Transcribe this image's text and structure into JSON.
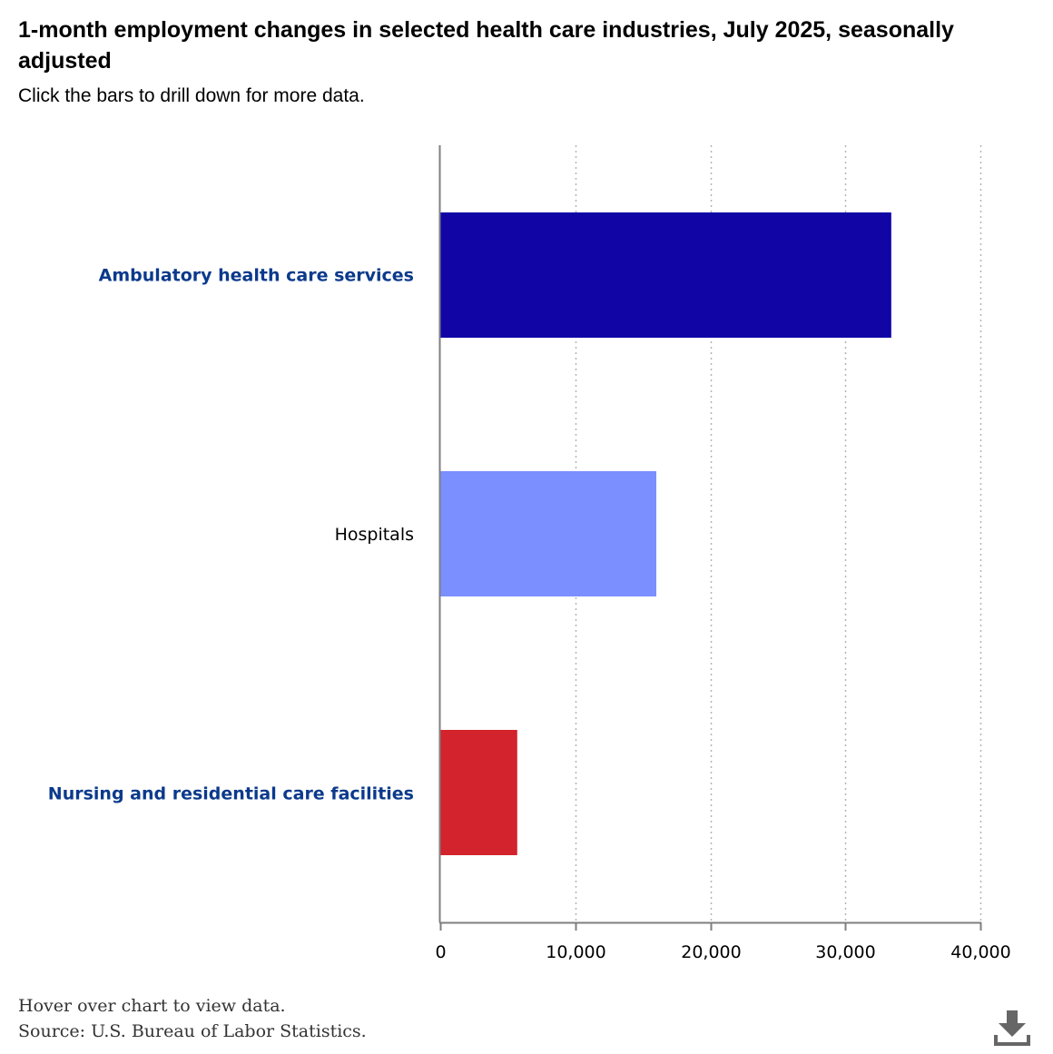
{
  "header": {
    "title": "1-month employment changes in selected health care industries, July 2025, seasonally adjusted",
    "subtitle": "Click the bars to drill down for more data."
  },
  "footer": {
    "hover_note": "Hover over chart to view data.",
    "source": "Source: U.S. Bureau of Labor Statistics."
  },
  "icons": {
    "download": "download-icon"
  },
  "chart_data": {
    "type": "bar",
    "orientation": "horizontal",
    "title": "1-month employment changes in selected health care industries, July 2025, seasonally adjusted",
    "subtitle": "Click the bars to drill down for more data.",
    "xlabel": "",
    "ylabel": "",
    "categories": [
      "Ambulatory health care services",
      "Hospitals",
      "Nursing and residential care facilities"
    ],
    "values": [
      33400,
      16000,
      5700
    ],
    "colors": [
      "#1105a6",
      "#7b8fff",
      "#d3232c"
    ],
    "category_links": [
      true,
      false,
      true
    ],
    "xlim": [
      0,
      40000
    ],
    "xticks": [
      0,
      10000,
      20000,
      30000,
      40000
    ],
    "xtick_labels": [
      "0",
      "10,000",
      "20,000",
      "30,000",
      "40,000"
    ],
    "grid": "vertical dotted",
    "legend": "none"
  }
}
